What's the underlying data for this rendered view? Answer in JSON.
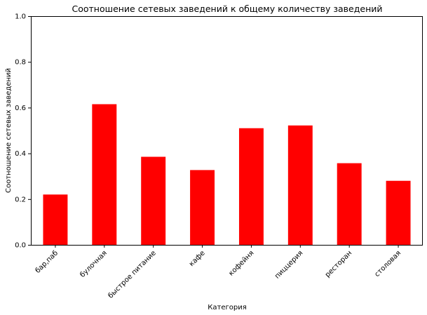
{
  "chart_data": {
    "type": "bar",
    "title": "Соотношение сетевых заведений к общему количеству заведений",
    "xlabel": "Категория",
    "ylabel": "Соотношение сетевых заведений",
    "categories": [
      "бар,паб",
      "булочная",
      "быстрое питание",
      "кафе",
      "кофейня",
      "пиццерия",
      "ресторан",
      "столовая"
    ],
    "values": [
      0.22,
      0.615,
      0.385,
      0.327,
      0.51,
      0.522,
      0.357,
      0.28
    ],
    "ylim": [
      0,
      1.0
    ],
    "yticks": [
      "0.0",
      "0.2",
      "0.4",
      "0.6",
      "0.8",
      "1.0"
    ],
    "bar_color": "#ff0000",
    "grid": false,
    "legend": "none"
  }
}
